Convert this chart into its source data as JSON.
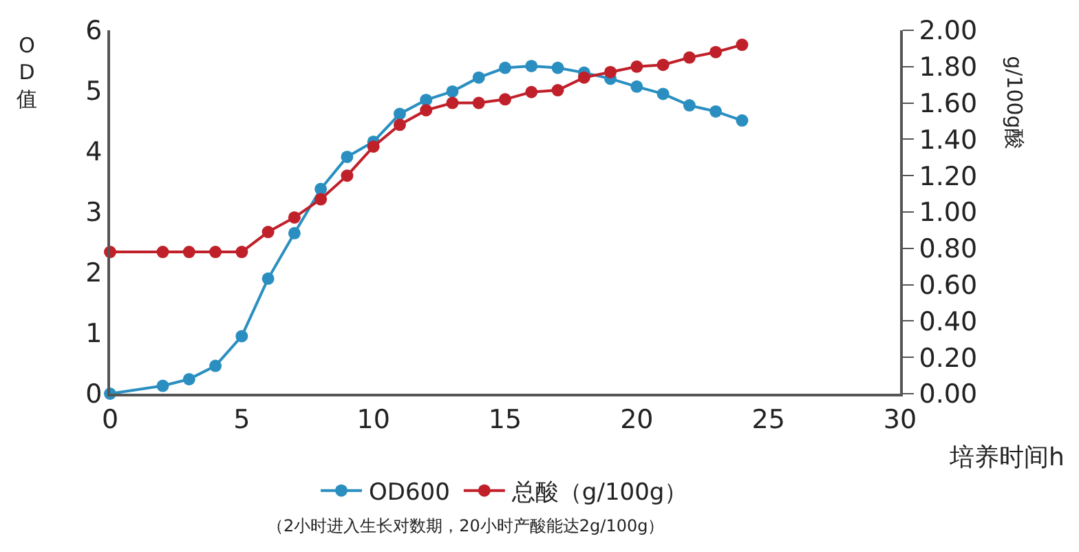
{
  "chart_data": {
    "type": "line",
    "xlabel": "培养时间h",
    "ylabel": "OD值",
    "y2label": "g/100g酸",
    "x": [
      0,
      2,
      3,
      4,
      5,
      6,
      7,
      8,
      9,
      10,
      11,
      12,
      13,
      14,
      15,
      16,
      17,
      18,
      19,
      20,
      21,
      22,
      23,
      24
    ],
    "series": [
      {
        "name": "OD600",
        "color": "#2a8fc0",
        "values": [
          0.0,
          0.13,
          0.24,
          0.46,
          0.95,
          1.9,
          2.65,
          3.38,
          3.91,
          4.16,
          4.62,
          4.85,
          4.99,
          5.22,
          5.38,
          5.41,
          5.38,
          5.3,
          5.2,
          5.07,
          4.95,
          4.76,
          4.66,
          4.51
        ]
      },
      {
        "name": "总酸（g/100g）",
        "color": "#c0202a",
        "axis": "y2",
        "values": [
          0.78,
          0.78,
          0.78,
          0.78,
          0.78,
          0.89,
          0.97,
          1.07,
          1.2,
          1.36,
          1.48,
          1.56,
          1.6,
          1.6,
          1.62,
          1.66,
          1.67,
          1.74,
          1.77,
          1.8,
          1.81,
          1.85,
          1.88,
          1.92
        ]
      }
    ],
    "xlim": [
      0,
      30
    ],
    "xticks": [
      0,
      5,
      10,
      15,
      20,
      25,
      30
    ],
    "ylim": [
      0,
      6
    ],
    "yticks": [
      0,
      1,
      2,
      3,
      4,
      5,
      6
    ],
    "y2lim": [
      0,
      2
    ],
    "y2ticks": [
      {
        "value": 0,
        "label": "0.00"
      },
      {
        "value": 0.2,
        "label": "0.20"
      },
      {
        "value": 0.4,
        "label": "0.40"
      },
      {
        "value": 0.6,
        "label": "0.60"
      },
      {
        "value": 0.8,
        "label": "0.80"
      },
      {
        "value": 1,
        "label": "1.00"
      },
      {
        "value": 1.2,
        "label": "1.20"
      },
      {
        "value": 1.4,
        "label": "1.40"
      },
      {
        "value": 1.6,
        "label": "1.60"
      },
      {
        "value": 1.8,
        "label": "1.80"
      },
      {
        "value": 2,
        "label": "2.00"
      }
    ],
    "legend": "bottom",
    "marker": "circle",
    "line_style": "solid",
    "annotations": [
      "（2小时进入生长对数期，20小时产酸能达2g/100g）"
    ]
  }
}
